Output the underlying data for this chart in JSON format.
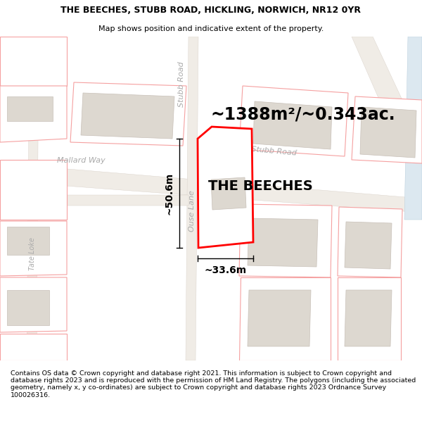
{
  "title": "THE BEECHES, STUBB ROAD, HICKLING, NORWICH, NR12 0YR",
  "subtitle": "Map shows position and indicative extent of the property.",
  "area_label": "~1388m²/~0.343ac.",
  "property_label": "THE BEECHES",
  "width_label": "~33.6m",
  "height_label": "~50.6m",
  "road_label_stubb": "Stubb Road",
  "road_label_ouse": "Ouse Lane",
  "road_label_stubb2": "Stubb Road",
  "road_label_mallard": "Mallard Way",
  "road_label_tate": "Tate Loke",
  "footer_text": "Contains OS data © Crown copyright and database right 2021. This information is subject to Crown copyright and database rights 2023 and is reproduced with the permission of HM Land Registry. The polygons (including the associated geometry, namely x, y co-ordinates) are subject to Crown copyright and database rights 2023 Ordnance Survey 100026316.",
  "map_bg": "#ffffff",
  "road_fill": "#f0ece6",
  "road_edge": "#d8d0c8",
  "plot_fill": "#ffffff",
  "plot_edge": "#f5a0a0",
  "plot_lw": 0.8,
  "building_fill": "#ddd8d0",
  "building_edge": "#c8c0b8",
  "building_lw": 0.5,
  "property_fill": "#ffffff",
  "property_edge": "#ff0000",
  "property_lw": 2.0,
  "blue_road_fill": "#dce8f0",
  "green_fill": "#dcecd8",
  "title_fontsize": 9,
  "subtitle_fontsize": 8,
  "area_fontsize": 17,
  "prop_label_fontsize": 14,
  "road_label_fs": 8,
  "dim_fontsize": 10,
  "footer_fontsize": 6.8
}
